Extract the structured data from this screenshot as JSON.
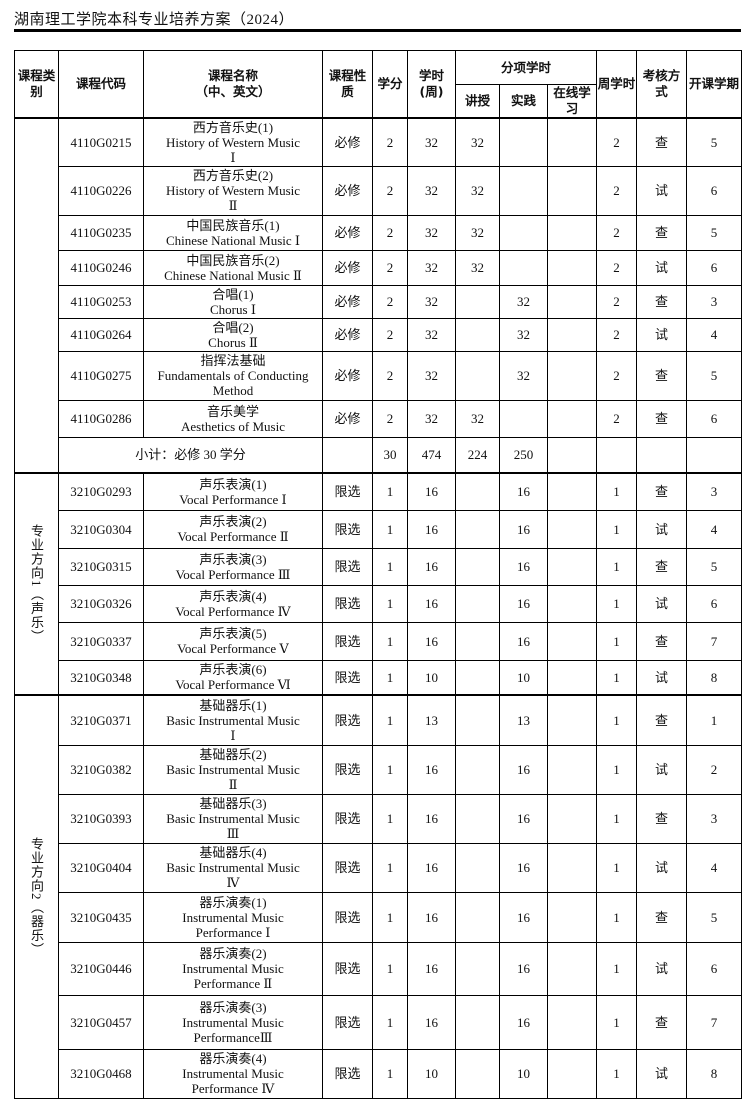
{
  "header": {
    "title": "湖南理工学院本科专业培养方案（2024）"
  },
  "columns": {
    "category": "课程类别",
    "code": "课程代码",
    "name": [
      "课程名称",
      "（中、英文）"
    ],
    "nature": "课程性质",
    "credits": "学分",
    "hours": "学时(周)",
    "split": "分项学时",
    "lecture": "讲授",
    "practice": "实践",
    "online": "在线学习",
    "weekly": "周学时",
    "exam": "考核方式",
    "semester": "开课学期"
  },
  "groups": [
    {
      "category": "",
      "rows": [
        {
          "code": "4110G0215",
          "name": [
            "西方音乐史(1)",
            "History of Western Music",
            "Ⅰ"
          ],
          "nature": "必修",
          "credits": "2",
          "hours": "32",
          "lecture": "32",
          "practice": "",
          "online": "",
          "weekly": "2",
          "exam": "查",
          "semester": "5"
        },
        {
          "code": "4110G0226",
          "name": [
            "西方音乐史(2)",
            "History of Western Music",
            "Ⅱ"
          ],
          "nature": "必修",
          "credits": "2",
          "hours": "32",
          "lecture": "32",
          "practice": "",
          "online": "",
          "weekly": "2",
          "exam": "试",
          "semester": "6"
        },
        {
          "code": "4110G0235",
          "name": [
            "中国民族音乐(1)",
            "Chinese National Music Ⅰ"
          ],
          "nature": "必修",
          "credits": "2",
          "hours": "32",
          "lecture": "32",
          "practice": "",
          "online": "",
          "weekly": "2",
          "exam": "查",
          "semester": "5"
        },
        {
          "code": "4110G0246",
          "name": [
            "中国民族音乐(2)",
            "Chinese National Music Ⅱ"
          ],
          "nature": "必修",
          "credits": "2",
          "hours": "32",
          "lecture": "32",
          "practice": "",
          "online": "",
          "weekly": "2",
          "exam": "试",
          "semester": "6"
        },
        {
          "code": "4110G0253",
          "name": [
            "合唱(1)",
            "Chorus Ⅰ"
          ],
          "nature": "必修",
          "credits": "2",
          "hours": "32",
          "lecture": "",
          "practice": "32",
          "online": "",
          "weekly": "2",
          "exam": "查",
          "semester": "3"
        },
        {
          "code": "4110G0264",
          "name": [
            "合唱(2)",
            "Chorus Ⅱ"
          ],
          "nature": "必修",
          "credits": "2",
          "hours": "32",
          "lecture": "",
          "practice": "32",
          "online": "",
          "weekly": "2",
          "exam": "试",
          "semester": "4"
        },
        {
          "code": "4110G0275",
          "name": [
            "指挥法基础",
            "Fundamentals of Conducting",
            "Method"
          ],
          "nature": "必修",
          "credits": "2",
          "hours": "32",
          "lecture": "",
          "practice": "32",
          "online": "",
          "weekly": "2",
          "exam": "查",
          "semester": "5"
        },
        {
          "code": "4110G0286",
          "name": [
            "音乐美学",
            "Aesthetics of Music"
          ],
          "nature": "必修",
          "credits": "2",
          "hours": "32",
          "lecture": "32",
          "practice": "",
          "online": "",
          "weekly": "2",
          "exam": "查",
          "semester": "6"
        }
      ],
      "subtotal": {
        "label": "小计：必修 30 学分",
        "credits": "30",
        "hours": "474",
        "lecture": "224",
        "practice": "250"
      }
    },
    {
      "category": "专业方向1（声乐）",
      "rows": [
        {
          "code": "3210G0293",
          "name": [
            "声乐表演(1)",
            "Vocal Performance Ⅰ"
          ],
          "nature": "限选",
          "credits": "1",
          "hours": "16",
          "lecture": "",
          "practice": "16",
          "online": "",
          "weekly": "1",
          "exam": "查",
          "semester": "3"
        },
        {
          "code": "3210G0304",
          "name": [
            "声乐表演(2)",
            "Vocal Performance Ⅱ"
          ],
          "nature": "限选",
          "credits": "1",
          "hours": "16",
          "lecture": "",
          "practice": "16",
          "online": "",
          "weekly": "1",
          "exam": "试",
          "semester": "4"
        },
        {
          "code": "3210G0315",
          "name": [
            "声乐表演(3)",
            "Vocal Performance Ⅲ"
          ],
          "nature": "限选",
          "credits": "1",
          "hours": "16",
          "lecture": "",
          "practice": "16",
          "online": "",
          "weekly": "1",
          "exam": "查",
          "semester": "5"
        },
        {
          "code": "3210G0326",
          "name": [
            "声乐表演(4)",
            "Vocal Performance Ⅳ"
          ],
          "nature": "限选",
          "credits": "1",
          "hours": "16",
          "lecture": "",
          "practice": "16",
          "online": "",
          "weekly": "1",
          "exam": "试",
          "semester": "6"
        },
        {
          "code": "3210G0337",
          "name": [
            "声乐表演(5)",
            "Vocal Performance Ⅴ"
          ],
          "nature": "限选",
          "credits": "1",
          "hours": "16",
          "lecture": "",
          "practice": "16",
          "online": "",
          "weekly": "1",
          "exam": "查",
          "semester": "7"
        },
        {
          "code": "3210G0348",
          "name": [
            "声乐表演(6)",
            "Vocal Performance Ⅵ"
          ],
          "nature": "限选",
          "credits": "1",
          "hours": "10",
          "lecture": "",
          "practice": "10",
          "online": "",
          "weekly": "1",
          "exam": "试",
          "semester": "8"
        }
      ]
    },
    {
      "category": "专业方向2（器乐）",
      "rows": [
        {
          "code": "3210G0371",
          "name": [
            "基础器乐(1)",
            "Basic Instrumental Music",
            "Ⅰ"
          ],
          "nature": "限选",
          "credits": "1",
          "hours": "13",
          "lecture": "",
          "practice": "13",
          "online": "",
          "weekly": "1",
          "exam": "查",
          "semester": "1"
        },
        {
          "code": "3210G0382",
          "name": [
            "基础器乐(2)",
            "Basic Instrumental Music",
            "Ⅱ"
          ],
          "nature": "限选",
          "credits": "1",
          "hours": "16",
          "lecture": "",
          "practice": "16",
          "online": "",
          "weekly": "1",
          "exam": "试",
          "semester": "2"
        },
        {
          "code": "3210G0393",
          "name": [
            "基础器乐(3)",
            "Basic Instrumental Music",
            "Ⅲ"
          ],
          "nature": "限选",
          "credits": "1",
          "hours": "16",
          "lecture": "",
          "practice": "16",
          "online": "",
          "weekly": "1",
          "exam": "查",
          "semester": "3"
        },
        {
          "code": "3210G0404",
          "name": [
            "基础器乐(4)",
            "Basic Instrumental Music",
            "Ⅳ"
          ],
          "nature": "限选",
          "credits": "1",
          "hours": "16",
          "lecture": "",
          "practice": "16",
          "online": "",
          "weekly": "1",
          "exam": "试",
          "semester": "4"
        },
        {
          "code": "3210G0435",
          "name": [
            "器乐演奏(1)",
            "Instrumental Music",
            "Performance Ⅰ"
          ],
          "nature": "限选",
          "credits": "1",
          "hours": "16",
          "lecture": "",
          "practice": "16",
          "online": "",
          "weekly": "1",
          "exam": "查",
          "semester": "5"
        },
        {
          "code": "3210G0446",
          "name": [
            "器乐演奏(2)",
            "Instrumental Music",
            "Performance Ⅱ"
          ],
          "nature": "限选",
          "credits": "1",
          "hours": "16",
          "lecture": "",
          "practice": "16",
          "online": "",
          "weekly": "1",
          "exam": "试",
          "semester": "6"
        },
        {
          "code": "3210G0457",
          "name": [
            "器乐演奏(3)",
            "Instrumental Music",
            "PerformanceⅢ"
          ],
          "nature": "限选",
          "credits": "1",
          "hours": "16",
          "lecture": "",
          "practice": "16",
          "online": "",
          "weekly": "1",
          "exam": "查",
          "semester": "7"
        },
        {
          "code": "3210G0468",
          "name": [
            "器乐演奏(4)",
            "Instrumental Music",
            "Performance Ⅳ"
          ],
          "nature": "限选",
          "credits": "1",
          "hours": "10",
          "lecture": "",
          "practice": "10",
          "online": "",
          "weekly": "1",
          "exam": "试",
          "semester": "8"
        }
      ]
    }
  ]
}
